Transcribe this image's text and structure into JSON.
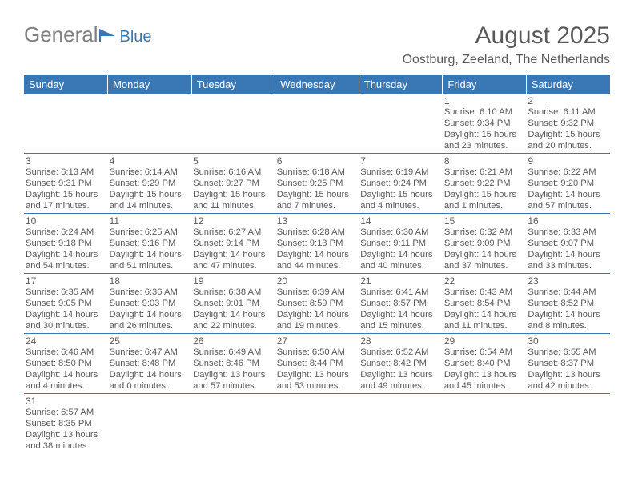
{
  "logo": {
    "general": "General",
    "blue": "Blue"
  },
  "header": {
    "title": "August 2025",
    "subtitle": "Oostburg, Zeeland, The Netherlands"
  },
  "colors": {
    "brand_blue": "#3a78b5",
    "text_gray": "#595959",
    "logo_gray": "#808080",
    "background": "#ffffff"
  },
  "dayHeaders": [
    "Sunday",
    "Monday",
    "Tuesday",
    "Wednesday",
    "Thursday",
    "Friday",
    "Saturday"
  ],
  "weeks": [
    [
      null,
      null,
      null,
      null,
      null,
      {
        "n": "1",
        "sr": "6:10 AM",
        "ss": "9:34 PM",
        "dh": "15",
        "dm": "23"
      },
      {
        "n": "2",
        "sr": "6:11 AM",
        "ss": "9:32 PM",
        "dh": "15",
        "dm": "20"
      }
    ],
    [
      {
        "n": "3",
        "sr": "6:13 AM",
        "ss": "9:31 PM",
        "dh": "15",
        "dm": "17"
      },
      {
        "n": "4",
        "sr": "6:14 AM",
        "ss": "9:29 PM",
        "dh": "15",
        "dm": "14"
      },
      {
        "n": "5",
        "sr": "6:16 AM",
        "ss": "9:27 PM",
        "dh": "15",
        "dm": "11"
      },
      {
        "n": "6",
        "sr": "6:18 AM",
        "ss": "9:25 PM",
        "dh": "15",
        "dm": "7"
      },
      {
        "n": "7",
        "sr": "6:19 AM",
        "ss": "9:24 PM",
        "dh": "15",
        "dm": "4"
      },
      {
        "n": "8",
        "sr": "6:21 AM",
        "ss": "9:22 PM",
        "dh": "15",
        "dm": "1"
      },
      {
        "n": "9",
        "sr": "6:22 AM",
        "ss": "9:20 PM",
        "dh": "14",
        "dm": "57"
      }
    ],
    [
      {
        "n": "10",
        "sr": "6:24 AM",
        "ss": "9:18 PM",
        "dh": "14",
        "dm": "54"
      },
      {
        "n": "11",
        "sr": "6:25 AM",
        "ss": "9:16 PM",
        "dh": "14",
        "dm": "51"
      },
      {
        "n": "12",
        "sr": "6:27 AM",
        "ss": "9:14 PM",
        "dh": "14",
        "dm": "47"
      },
      {
        "n": "13",
        "sr": "6:28 AM",
        "ss": "9:13 PM",
        "dh": "14",
        "dm": "44"
      },
      {
        "n": "14",
        "sr": "6:30 AM",
        "ss": "9:11 PM",
        "dh": "14",
        "dm": "40"
      },
      {
        "n": "15",
        "sr": "6:32 AM",
        "ss": "9:09 PM",
        "dh": "14",
        "dm": "37"
      },
      {
        "n": "16",
        "sr": "6:33 AM",
        "ss": "9:07 PM",
        "dh": "14",
        "dm": "33"
      }
    ],
    [
      {
        "n": "17",
        "sr": "6:35 AM",
        "ss": "9:05 PM",
        "dh": "14",
        "dm": "30"
      },
      {
        "n": "18",
        "sr": "6:36 AM",
        "ss": "9:03 PM",
        "dh": "14",
        "dm": "26"
      },
      {
        "n": "19",
        "sr": "6:38 AM",
        "ss": "9:01 PM",
        "dh": "14",
        "dm": "22"
      },
      {
        "n": "20",
        "sr": "6:39 AM",
        "ss": "8:59 PM",
        "dh": "14",
        "dm": "19"
      },
      {
        "n": "21",
        "sr": "6:41 AM",
        "ss": "8:57 PM",
        "dh": "14",
        "dm": "15"
      },
      {
        "n": "22",
        "sr": "6:43 AM",
        "ss": "8:54 PM",
        "dh": "14",
        "dm": "11"
      },
      {
        "n": "23",
        "sr": "6:44 AM",
        "ss": "8:52 PM",
        "dh": "14",
        "dm": "8"
      }
    ],
    [
      {
        "n": "24",
        "sr": "6:46 AM",
        "ss": "8:50 PM",
        "dh": "14",
        "dm": "4"
      },
      {
        "n": "25",
        "sr": "6:47 AM",
        "ss": "8:48 PM",
        "dh": "14",
        "dm": "0"
      },
      {
        "n": "26",
        "sr": "6:49 AM",
        "ss": "8:46 PM",
        "dh": "13",
        "dm": "57"
      },
      {
        "n": "27",
        "sr": "6:50 AM",
        "ss": "8:44 PM",
        "dh": "13",
        "dm": "53"
      },
      {
        "n": "28",
        "sr": "6:52 AM",
        "ss": "8:42 PM",
        "dh": "13",
        "dm": "49"
      },
      {
        "n": "29",
        "sr": "6:54 AM",
        "ss": "8:40 PM",
        "dh": "13",
        "dm": "45"
      },
      {
        "n": "30",
        "sr": "6:55 AM",
        "ss": "8:37 PM",
        "dh": "13",
        "dm": "42"
      }
    ],
    [
      {
        "n": "31",
        "sr": "6:57 AM",
        "ss": "8:35 PM",
        "dh": "13",
        "dm": "38"
      },
      null,
      null,
      null,
      null,
      null,
      null
    ]
  ],
  "labels": {
    "sunrise": "Sunrise: ",
    "sunset": "Sunset: ",
    "daylight": "Daylight: ",
    "hours": " hours",
    "and": "and ",
    "minutes": " minutes."
  }
}
